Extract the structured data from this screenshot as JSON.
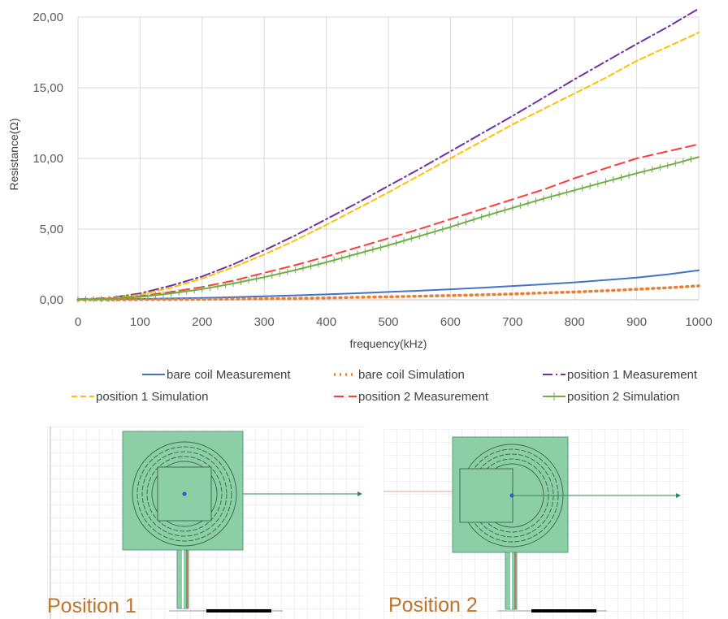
{
  "chart_data": {
    "type": "line",
    "title": "",
    "xlabel": "frequency(kHz)",
    "ylabel": "Resistance(Ω)",
    "xlim": [
      0,
      1000
    ],
    "ylim": [
      0,
      20
    ],
    "x_ticks": [
      0,
      100,
      200,
      300,
      400,
      500,
      600,
      700,
      800,
      900,
      1000
    ],
    "x_tick_labels": [
      "0",
      "100",
      "200",
      "300",
      "400",
      "500",
      "600",
      "700",
      "800",
      "900",
      "1000"
    ],
    "y_ticks": [
      0,
      5,
      10,
      15,
      20
    ],
    "y_tick_labels": [
      "0,00",
      "5,00",
      "10,00",
      "15,00",
      "20,00"
    ],
    "grid": true,
    "legend_position": "bottom",
    "x": [
      0,
      50,
      100,
      150,
      200,
      250,
      300,
      350,
      400,
      450,
      500,
      550,
      600,
      650,
      700,
      750,
      800,
      850,
      900,
      950,
      1000
    ],
    "series": [
      {
        "name": "bare  coil Measurement",
        "color": "#4472C4",
        "dash": "solid",
        "values": [
          0.02,
          0.04,
          0.06,
          0.09,
          0.13,
          0.18,
          0.24,
          0.31,
          0.38,
          0.46,
          0.55,
          0.64,
          0.74,
          0.85,
          0.97,
          1.09,
          1.23,
          1.39,
          1.57,
          1.8,
          2.08
        ]
      },
      {
        "name": "bare coil Simulation",
        "color": "#ED7D31",
        "dash": "dot",
        "values": [
          0.0,
          0.0,
          0.01,
          0.02,
          0.03,
          0.05,
          0.07,
          0.1,
          0.13,
          0.17,
          0.21,
          0.25,
          0.3,
          0.35,
          0.41,
          0.48,
          0.55,
          0.64,
          0.74,
          0.85,
          0.98
        ]
      },
      {
        "name": "position 1 Measurement",
        "color": "#7030A0",
        "dash": "dashdot",
        "values": [
          0.05,
          0.12,
          0.45,
          1.0,
          1.65,
          2.5,
          3.5,
          4.55,
          5.7,
          6.85,
          8.05,
          9.25,
          10.5,
          11.75,
          13.0,
          14.3,
          15.6,
          16.85,
          18.1,
          19.3,
          20.6
        ]
      },
      {
        "name": "position 1 Simulation",
        "color": "#FFC000",
        "dash": "dash",
        "values": [
          0.04,
          0.1,
          0.35,
          0.85,
          1.5,
          2.3,
          3.2,
          4.2,
          5.3,
          6.45,
          7.6,
          8.8,
          10.0,
          11.2,
          12.4,
          13.5,
          14.6,
          15.7,
          16.9,
          17.9,
          18.9
        ]
      },
      {
        "name": "position 2 Measurement",
        "color": "#FF3B3B",
        "dash": "longdash",
        "values": [
          0.03,
          0.08,
          0.25,
          0.55,
          0.9,
          1.35,
          1.9,
          2.45,
          3.05,
          3.7,
          4.35,
          5.0,
          5.7,
          6.4,
          7.1,
          7.8,
          8.6,
          9.3,
          10.0,
          10.5,
          11.0
        ]
      },
      {
        "name": "position 2 Simulation",
        "color": "#70AD47",
        "dash": "plus",
        "values": [
          0.02,
          0.06,
          0.2,
          0.45,
          0.75,
          1.15,
          1.6,
          2.1,
          2.65,
          3.25,
          3.85,
          4.5,
          5.15,
          5.85,
          6.5,
          7.15,
          7.75,
          8.35,
          8.95,
          9.5,
          10.1
        ]
      }
    ]
  },
  "panels": {
    "position1": {
      "label": "Position 1"
    },
    "position2": {
      "label": "Position 2"
    },
    "colors": {
      "coil": "#8ccfa6",
      "arrow": "#2e8b57",
      "lead_marker": "#d62728"
    }
  }
}
